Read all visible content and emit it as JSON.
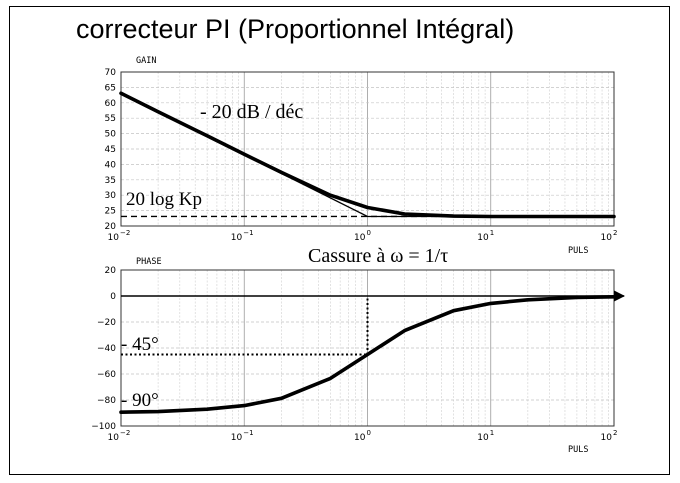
{
  "title": "correcteur PI (Proportionnel Intégral)",
  "chart_data": [
    {
      "type": "line",
      "ylabel": "GAIN",
      "xlabel": "PULS",
      "x_scale": "log",
      "xlim": [
        0.01,
        100
      ],
      "ylim": [
        20,
        70
      ],
      "yticks": [
        "70",
        "65",
        "60",
        "55",
        "50",
        "45",
        "40",
        "35",
        "30",
        "25",
        "20"
      ],
      "xticks": [
        {
          "base": "10",
          "exp": "−2"
        },
        {
          "base": "10",
          "exp": "−1"
        },
        {
          "base": "10",
          "exp": "0"
        },
        {
          "base": "10",
          "exp": "1"
        },
        {
          "base": "10",
          "exp": "2"
        }
      ],
      "grid": true,
      "series": [
        {
          "x": [
            0.01,
            0.02,
            0.05,
            0.1,
            0.2,
            0.5,
            1,
            2,
            5,
            10,
            100
          ],
          "y": [
            63.1,
            57.1,
            49.3,
            43.3,
            37.4,
            30.0,
            26.0,
            23.9,
            23.2,
            23.1,
            23.1
          ]
        }
      ],
      "asymptotes": [
        {
          "x": [
            0.01,
            1,
            100
          ],
          "y": [
            63.1,
            23.1,
            23.1
          ]
        }
      ],
      "reference_line": {
        "y": 23.1
      },
      "annotations": [
        "- 20 dB / déc",
        "20 log Kp"
      ]
    },
    {
      "type": "line",
      "ylabel": "PHASE",
      "xlabel": "PULS",
      "x_scale": "log",
      "xlim": [
        0.01,
        100
      ],
      "ylim": [
        -100,
        20
      ],
      "yticks": [
        "20",
        "0",
        "−20",
        "−40",
        "−60",
        "−80",
        "−100"
      ],
      "xticks": [
        {
          "base": "10",
          "exp": "−2"
        },
        {
          "base": "10",
          "exp": "−1"
        },
        {
          "base": "10",
          "exp": "0"
        },
        {
          "base": "10",
          "exp": "1"
        },
        {
          "base": "10",
          "exp": "2"
        }
      ],
      "grid": true,
      "series": [
        {
          "x": [
            0.01,
            0.02,
            0.05,
            0.1,
            0.2,
            0.5,
            1,
            2,
            5,
            10,
            20,
            50,
            100
          ],
          "y": [
            -89.4,
            -88.9,
            -87.1,
            -84.3,
            -78.7,
            -63.4,
            -45.0,
            -26.6,
            -11.3,
            -5.7,
            -2.9,
            -1.1,
            -0.6
          ]
        }
      ],
      "marker_point": {
        "x": 1,
        "y": -45
      },
      "annotations": [
        "- 45°",
        "- 90°"
      ]
    }
  ],
  "cassure_label": "Cassure à ω = 1/τ"
}
